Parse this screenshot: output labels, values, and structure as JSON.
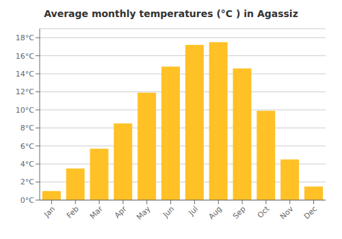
{
  "chart_data": {
    "type": "bar",
    "title": "Average monthly temperatures (°C ) in Agassiz",
    "categories": [
      "Jan",
      "Feb",
      "Mar",
      "Apr",
      "May",
      "Jun",
      "Jul",
      "Aug",
      "Sep",
      "Oct",
      "Nov",
      "Dec"
    ],
    "values": [
      1.0,
      3.5,
      5.7,
      8.5,
      11.9,
      14.8,
      17.2,
      17.5,
      14.6,
      9.9,
      4.5,
      1.5
    ],
    "color": "#FFC125",
    "ylim": [
      0,
      19
    ],
    "yticks": [
      {
        "value": 0,
        "label": "0°C"
      },
      {
        "value": 2,
        "label": "2°C"
      },
      {
        "value": 4,
        "label": "4°C"
      },
      {
        "value": 6,
        "label": "6°C"
      },
      {
        "value": 8,
        "label": "8°C"
      },
      {
        "value": 10,
        "label": "10°C"
      },
      {
        "value": 12,
        "label": "12°C"
      },
      {
        "value": 14,
        "label": "14°C"
      },
      {
        "value": 16,
        "label": "16°C"
      },
      {
        "value": 18,
        "label": "18°C"
      }
    ],
    "grid": true
  }
}
